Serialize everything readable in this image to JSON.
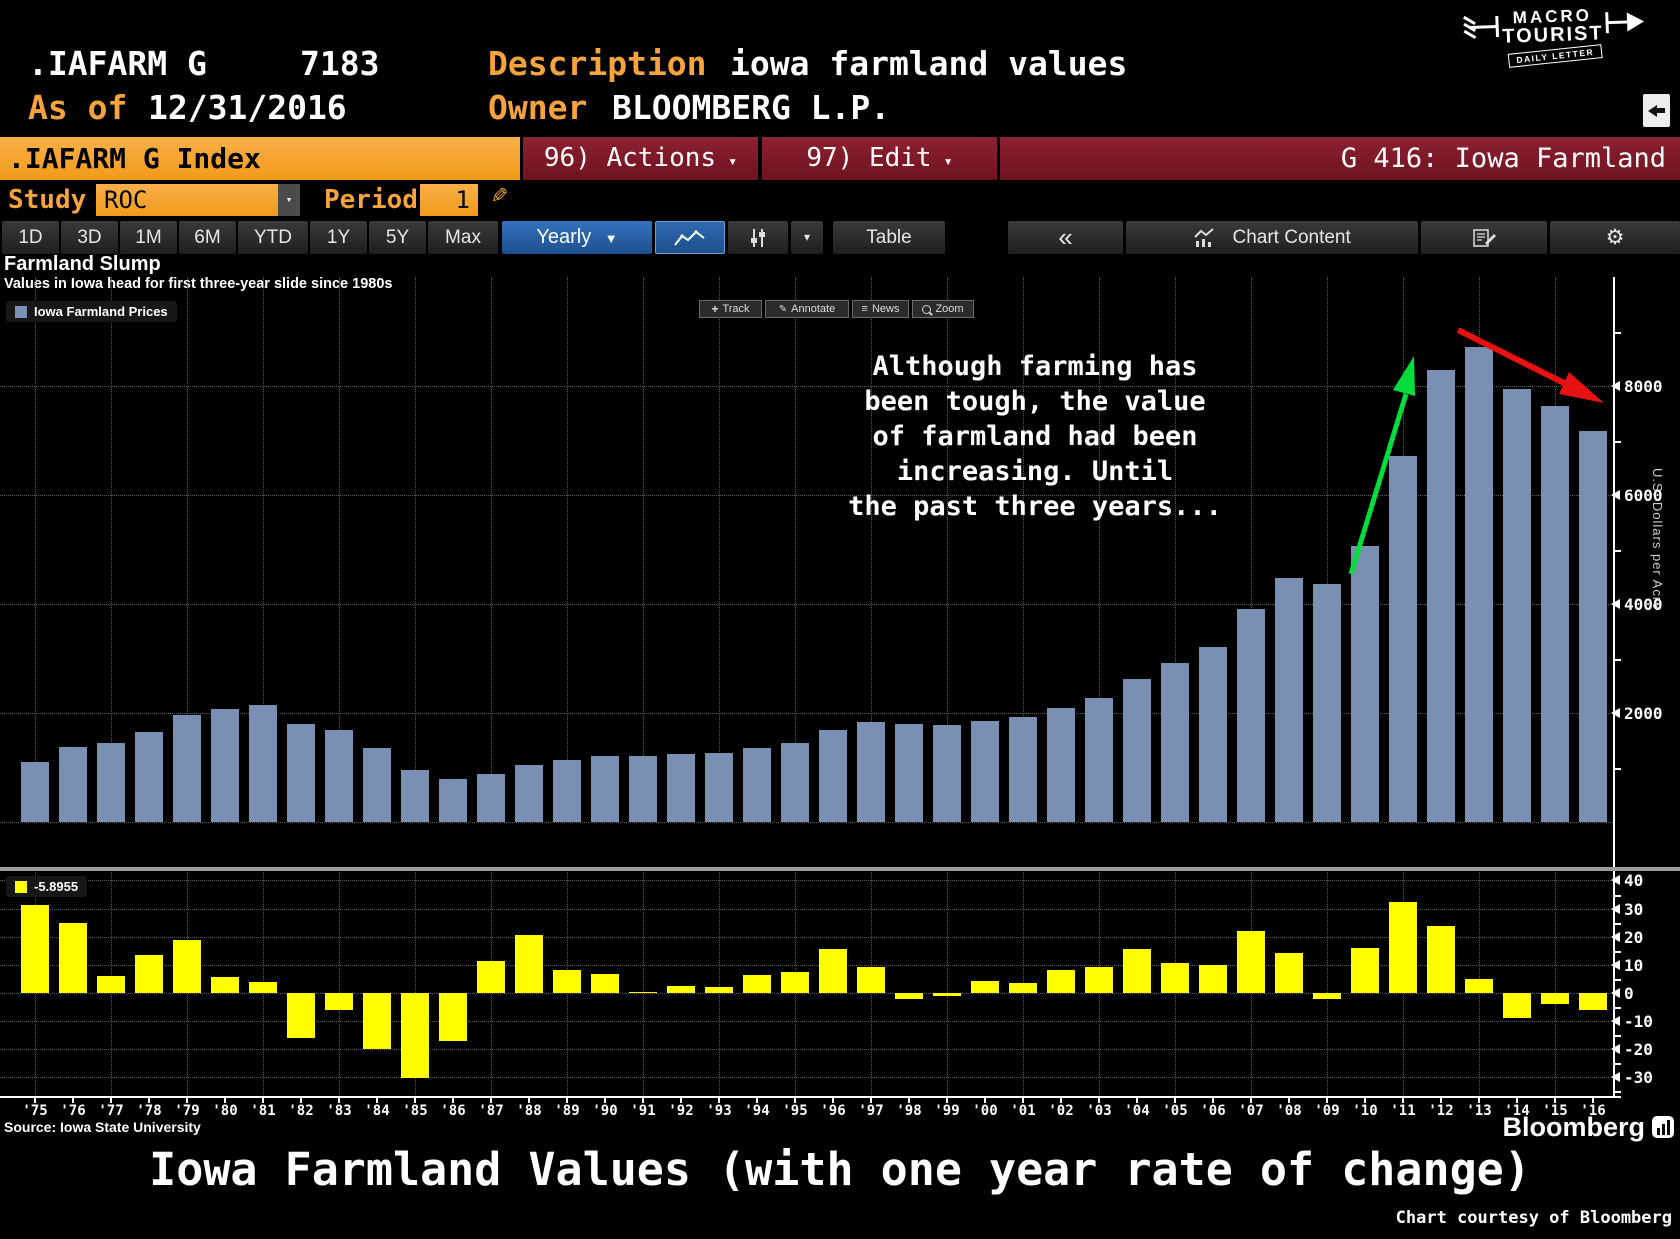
{
  "header": {
    "ticker": ".IAFARM G",
    "value": "7183",
    "as_of_label": "As of",
    "as_of_date": "12/31/2016",
    "description_label": "Description",
    "description_value": "iowa farmland values",
    "owner_label": "Owner",
    "owner_value": "BLOOMBERG L.P.",
    "logo": {
      "line1": "MACRO",
      "line2": "TOURIST",
      "ribbon": "DAILY LETTER"
    }
  },
  "title_bar": {
    "index_name": ".IAFARM G Index",
    "actions": "96) Actions",
    "edit": "97) Edit",
    "page": "G 416: Iowa Farmland"
  },
  "study_row": {
    "study_label": "Study",
    "study_value": "ROC",
    "period_label": "Period",
    "period_value": "1"
  },
  "toolbar": {
    "ranges": [
      "1D",
      "3D",
      "1M",
      "6M",
      "YTD",
      "1Y",
      "5Y",
      "Max"
    ],
    "frequency": "Yearly",
    "table": "Table",
    "chart_content": "Chart Content"
  },
  "icons": {
    "caret_down_small": "▾",
    "yearly_caret": "▼",
    "back": "«",
    "gear": "⚙",
    "pencil": "✎",
    "track": "+",
    "annotate": "✎",
    "news": "≡"
  },
  "chart": {
    "title": "Farmland Slump",
    "subtitle": "Values in Iowa head for first three-year slide since 1980s",
    "main_legend": "Iowa Farmland Prices",
    "roc_legend": "-5.8955",
    "tools": {
      "track": "Track",
      "annotate": "Annotate",
      "news": "News",
      "zoom": "Zoom"
    },
    "annotation": "Although farming has\nbeen tough, the value\nof farmland had been\nincreasing.  Until\nthe past three years...",
    "y_axis_title": "U.S. Dollars per Acre",
    "source": "Source: Iowa State University",
    "brand": "Bloomberg"
  },
  "footer": {
    "title": "Iowa Farmland Values (with one year rate of change)",
    "credit": "Chart courtesy of Bloomberg"
  },
  "colors": {
    "accent_orange": "#f7a22b",
    "panel_red": "#7e1523",
    "button_blue": "#2a62a8",
    "bar_blue": "#7a90b2",
    "bar_yellow": "#ffff00",
    "arrow_green": "#00dd3c",
    "arrow_red": "#e81111"
  },
  "chart_data": [
    {
      "type": "bar",
      "panel": "main",
      "series_name": "Iowa Farmland Prices",
      "title": "Farmland Slump",
      "ylabel": "U.S. Dollars per Acre",
      "ylim": [
        0,
        10000
      ],
      "yticks": [
        2000,
        4000,
        6000,
        8000
      ],
      "yticks_minor": [
        1000,
        3000,
        5000,
        7000,
        9000
      ],
      "grid": "dotted",
      "legend_position": "top-left",
      "bar_color": "#7a90b2",
      "categories": [
        "'75",
        "'76",
        "'77",
        "'78",
        "'79",
        "'80",
        "'81",
        "'82",
        "'83",
        "'84",
        "'85",
        "'86",
        "'87",
        "'88",
        "'89",
        "'90",
        "'91",
        "'92",
        "'93",
        "'94",
        "'95",
        "'96",
        "'97",
        "'98",
        "'99",
        "'00",
        "'01",
        "'02",
        "'03",
        "'04",
        "'05",
        "'06",
        "'07",
        "'08",
        "'09",
        "'10",
        "'11",
        "'12",
        "'13",
        "'14",
        "'15",
        "'16"
      ],
      "values": [
        1095,
        1368,
        1450,
        1646,
        1958,
        2066,
        2147,
        1801,
        1691,
        1357,
        948,
        787,
        875,
        1054,
        1139,
        1214,
        1219,
        1249,
        1275,
        1356,
        1455,
        1682,
        1837,
        1801,
        1781,
        1857,
        1926,
        2083,
        2275,
        2629,
        2914,
        3204,
        3908,
        4468,
        4371,
        5064,
        6708,
        8296,
        8716,
        7943,
        7633,
        7183
      ]
    },
    {
      "type": "bar",
      "panel": "lower",
      "series_name": "ROC Period 1 (%)",
      "last_value": -5.8955,
      "ylim": [
        -37,
        43
      ],
      "yticks": [
        40,
        30,
        20,
        10,
        0,
        -10,
        -20,
        -30
      ],
      "yticks_minor": [
        35,
        25,
        15,
        5,
        -5,
        -15,
        -25,
        -35
      ],
      "grid": "dotted",
      "bar_color": "#ffff00",
      "categories": [
        "'75",
        "'76",
        "'77",
        "'78",
        "'79",
        "'80",
        "'81",
        "'82",
        "'83",
        "'84",
        "'85",
        "'86",
        "'87",
        "'88",
        "'89",
        "'90",
        "'91",
        "'92",
        "'93",
        "'94",
        "'95",
        "'96",
        "'97",
        "'98",
        "'99",
        "'00",
        "'01",
        "'02",
        "'03",
        "'04",
        "'05",
        "'06",
        "'07",
        "'08",
        "'09",
        "'10",
        "'11",
        "'12",
        "'13",
        "'14",
        "'15",
        "'16"
      ],
      "values": [
        31.3,
        24.9,
        6.0,
        13.5,
        19.0,
        5.5,
        3.9,
        -16.1,
        -6.1,
        -19.8,
        -30.1,
        -17.0,
        11.2,
        20.5,
        8.1,
        6.6,
        0.4,
        2.5,
        2.1,
        6.4,
        7.3,
        15.6,
        9.2,
        -2.0,
        -1.1,
        4.3,
        3.7,
        8.2,
        9.2,
        15.6,
        10.8,
        10.0,
        22.0,
        14.3,
        -2.2,
        15.9,
        32.5,
        23.7,
        5.1,
        -8.9,
        -3.9,
        -5.9
      ]
    }
  ]
}
